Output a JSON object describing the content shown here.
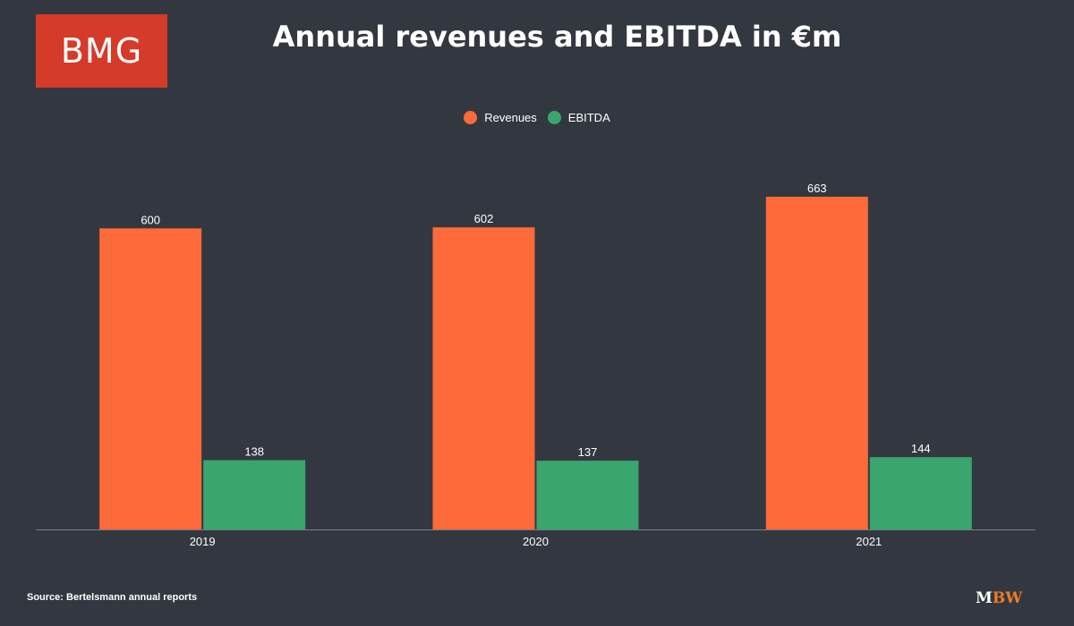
{
  "logo": {
    "text": "BMG"
  },
  "source": "Source: Bertelsmann annual reports",
  "brand": {
    "m": "M",
    "bw": "BW"
  },
  "colors": {
    "background": "#333840",
    "revenues": "#ff6a3a",
    "ebitda": "#3aa56e",
    "logo_bg": "#d63a28",
    "brand_accent": "#f07a2a"
  },
  "chart_data": {
    "type": "bar",
    "title": "Annual revenues and EBITDA in €m",
    "categories": [
      "2019",
      "2020",
      "2021"
    ],
    "series": [
      {
        "name": "Revenues",
        "values": [
          600,
          602,
          663
        ],
        "color": "#ff6a3a"
      },
      {
        "name": "EBITDA",
        "values": [
          138,
          137,
          144
        ],
        "color": "#3aa56e"
      }
    ],
    "ylim": [
      0,
      663
    ],
    "grid": false,
    "legend": "top-center"
  }
}
